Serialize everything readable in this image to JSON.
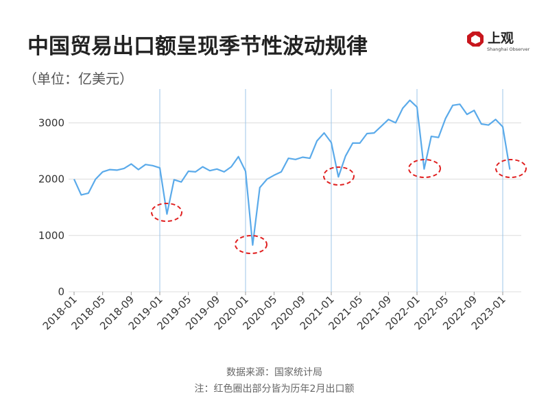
{
  "chart_data": {
    "type": "line",
    "title": "中国贸易出口额呈现季节性波动规律",
    "subtitle": "（单位：亿美元）",
    "brand": {
      "name": "上观",
      "name_en": "Shanghai Observer"
    },
    "source": "数据来源：国家统计局",
    "note": "注：红色圈出部分皆为历年2月出口额",
    "categories": [
      "2018-01",
      null,
      null,
      null,
      "2018-05",
      null,
      null,
      null,
      "2018-09",
      null,
      null,
      null,
      "2019-01",
      null,
      null,
      null,
      "2019-05",
      null,
      null,
      null,
      "2019-09",
      null,
      null,
      null,
      "2020-01",
      null,
      null,
      null,
      "2020-05",
      null,
      null,
      null,
      "2020-09",
      null,
      null,
      null,
      "2021-01",
      null,
      null,
      null,
      "2021-05",
      null,
      null,
      null,
      "2021-09",
      null,
      null,
      null,
      "2022-01",
      null,
      null,
      null,
      "2022-05",
      null,
      null,
      null,
      "2022-09",
      null,
      null,
      null,
      "2023-01",
      null
    ],
    "series": [
      {
        "name": "出口额",
        "color": "#5aaaea",
        "values": [
          2000,
          1720,
          1750,
          2000,
          2130,
          2170,
          2160,
          2190,
          2270,
          2170,
          2260,
          2240,
          2200,
          1380,
          1990,
          1950,
          2140,
          2130,
          2220,
          2150,
          2180,
          2130,
          2220,
          2400,
          2140,
          830,
          1850,
          2000,
          2070,
          2130,
          2370,
          2350,
          2390,
          2370,
          2680,
          2820,
          2650,
          2040,
          2410,
          2640,
          2640,
          2810,
          2820,
          2940,
          3060,
          3000,
          3260,
          3400,
          3280,
          2180,
          2760,
          2740,
          3080,
          3310,
          3330,
          3150,
          3220,
          2980,
          2960,
          3060,
          2930,
          2170
        ]
      }
    ],
    "ylim": [
      0,
      3600
    ],
    "yticks": [
      0,
      1000,
      2000,
      3000
    ],
    "grid": true
  }
}
